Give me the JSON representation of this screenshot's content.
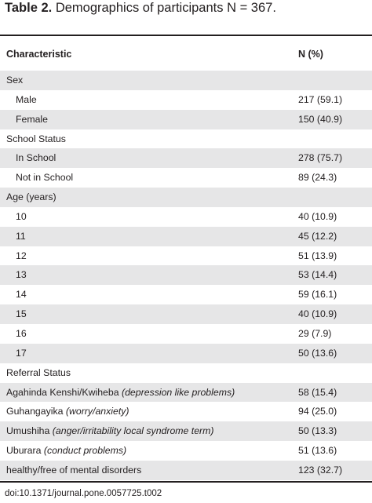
{
  "caption": {
    "label": "Table 2.",
    "text": "Demographics of participants N = 367."
  },
  "header": {
    "characteristic": "Characteristic",
    "n_pct": "N (%)"
  },
  "rows": [
    {
      "label": "Sex",
      "desc": "",
      "value": "",
      "indent": false,
      "shade": true
    },
    {
      "label": "Male",
      "desc": "",
      "value": "217 (59.1)",
      "indent": true,
      "shade": false
    },
    {
      "label": "Female",
      "desc": "",
      "value": "150 (40.9)",
      "indent": true,
      "shade": true
    },
    {
      "label": "School Status",
      "desc": "",
      "value": "",
      "indent": false,
      "shade": false
    },
    {
      "label": "In School",
      "desc": "",
      "value": "278 (75.7)",
      "indent": true,
      "shade": true
    },
    {
      "label": "Not in School",
      "desc": "",
      "value": "89 (24.3)",
      "indent": true,
      "shade": false
    },
    {
      "label": "Age (years)",
      "desc": "",
      "value": "",
      "indent": false,
      "shade": true
    },
    {
      "label": "10",
      "desc": "",
      "value": "40 (10.9)",
      "indent": true,
      "shade": false
    },
    {
      "label": "11",
      "desc": "",
      "value": "45 (12.2)",
      "indent": true,
      "shade": true
    },
    {
      "label": "12",
      "desc": "",
      "value": "51 (13.9)",
      "indent": true,
      "shade": false
    },
    {
      "label": "13",
      "desc": "",
      "value": "53 (14.4)",
      "indent": true,
      "shade": true
    },
    {
      "label": "14",
      "desc": "",
      "value": "59 (16.1)",
      "indent": true,
      "shade": false
    },
    {
      "label": "15",
      "desc": "",
      "value": "40 (10.9)",
      "indent": true,
      "shade": true
    },
    {
      "label": "16",
      "desc": "",
      "value": "29 (7.9)",
      "indent": true,
      "shade": false
    },
    {
      "label": "17",
      "desc": "",
      "value": "50 (13.6)",
      "indent": true,
      "shade": true
    },
    {
      "label": "Referral Status",
      "desc": "",
      "value": "",
      "indent": false,
      "shade": false
    },
    {
      "label": "Agahinda Kenshi/Kwiheba",
      "desc": "(depression like problems)",
      "value": "58 (15.4)",
      "indent": false,
      "shade": true
    },
    {
      "label": "Guhangayika",
      "desc": "(worry/anxiety)",
      "value": "94 (25.0)",
      "indent": false,
      "shade": false
    },
    {
      "label": "Umushiha",
      "desc": "(anger/irritability local syndrome term)",
      "value": "50 (13.3)",
      "indent": false,
      "shade": true
    },
    {
      "label": "Uburara",
      "desc": "(conduct problems)",
      "value": "51 (13.6)",
      "indent": false,
      "shade": false
    },
    {
      "label": "healthy/free of mental disorders",
      "desc": "",
      "value": "123 (32.7)",
      "indent": false,
      "shade": true
    }
  ],
  "footer": {
    "doi": "doi:10.1371/journal.pone.0057725.t002"
  }
}
